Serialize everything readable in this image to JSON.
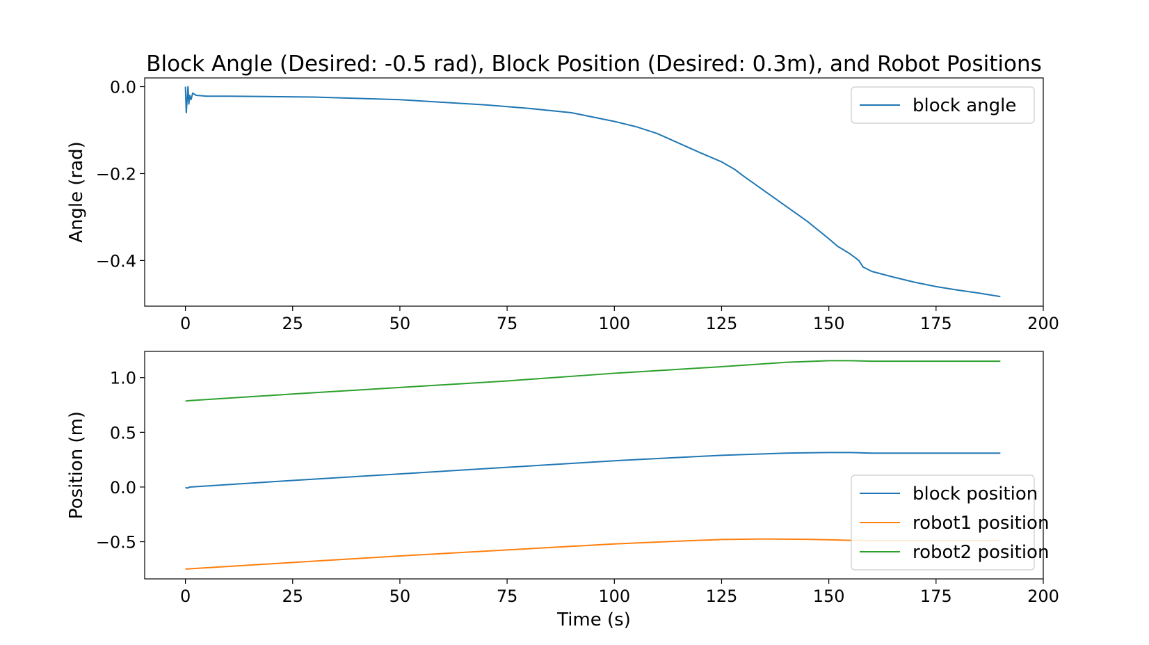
{
  "chart_data": [
    {
      "type": "line",
      "title": "Block Angle (Desired: -0.5 rad), Block Position (Desired: 0.3m), and Robot Positions",
      "xlabel": "",
      "ylabel": "Angle (rad)",
      "xlim": [
        -9.5,
        200
      ],
      "ylim": [
        -0.505,
        0.02
      ],
      "xticks": [
        0,
        25,
        50,
        75,
        100,
        125,
        150,
        175,
        200
      ],
      "xtick_labels": [
        "0",
        "25",
        "50",
        "75",
        "100",
        "125",
        "150",
        "175",
        "200"
      ],
      "yticks": [
        0.0,
        -0.2,
        -0.4
      ],
      "ytick_labels": [
        "0.0",
        "−0.2",
        "−0.4"
      ],
      "legend_position": "upper right",
      "grid": false,
      "series": [
        {
          "name": "block angle",
          "color": "#1f77b4",
          "x": [
            0,
            0.2,
            0.4,
            0.6,
            0.8,
            1.0,
            1.3,
            1.7,
            2.5,
            5,
            10,
            20,
            30,
            40,
            50,
            60,
            70,
            80,
            90,
            100,
            105,
            110,
            115,
            120,
            125,
            128,
            130,
            135,
            140,
            145,
            150,
            152,
            155,
            157,
            158,
            160,
            165,
            170,
            175,
            180,
            185,
            190
          ],
          "y": [
            0.0,
            -0.06,
            -0.03,
            0.0,
            -0.04,
            -0.02,
            -0.03,
            -0.015,
            -0.02,
            -0.022,
            -0.022,
            -0.023,
            -0.024,
            -0.027,
            -0.03,
            -0.036,
            -0.042,
            -0.05,
            -0.06,
            -0.08,
            -0.092,
            -0.108,
            -0.13,
            -0.152,
            -0.173,
            -0.19,
            -0.205,
            -0.24,
            -0.275,
            -0.31,
            -0.35,
            -0.367,
            -0.385,
            -0.4,
            -0.415,
            -0.425,
            -0.438,
            -0.45,
            -0.46,
            -0.468,
            -0.475,
            -0.483
          ]
        }
      ]
    },
    {
      "type": "line",
      "title": "",
      "xlabel": "Time (s)",
      "ylabel": "Position (m)",
      "xlim": [
        -9.5,
        200
      ],
      "ylim": [
        -0.84,
        1.24
      ],
      "xticks": [
        0,
        25,
        50,
        75,
        100,
        125,
        150,
        175,
        200
      ],
      "xtick_labels": [
        "0",
        "25",
        "50",
        "75",
        "100",
        "125",
        "150",
        "175",
        "200"
      ],
      "yticks": [
        1.0,
        0.5,
        0.0,
        -0.5
      ],
      "ytick_labels": [
        "1.0",
        "0.5",
        "0.0",
        "−0.5"
      ],
      "legend_position": "lower right",
      "grid": false,
      "series": [
        {
          "name": "block position",
          "color": "#1f77b4",
          "x": [
            0,
            0.5,
            1,
            25,
            50,
            75,
            100,
            125,
            140,
            150,
            155,
            160,
            170,
            180,
            190
          ],
          "y": [
            -0.005,
            -0.01,
            0.0,
            0.06,
            0.12,
            0.18,
            0.24,
            0.29,
            0.31,
            0.315,
            0.315,
            0.31,
            0.31,
            0.31,
            0.31
          ]
        },
        {
          "name": "robot1 position",
          "color": "#ff7f0e",
          "x": [
            0,
            25,
            50,
            75,
            100,
            115,
            125,
            135,
            145,
            150,
            155,
            160,
            170,
            180,
            190
          ],
          "y": [
            -0.75,
            -0.69,
            -0.63,
            -0.575,
            -0.52,
            -0.495,
            -0.48,
            -0.475,
            -0.478,
            -0.482,
            -0.488,
            -0.49,
            -0.49,
            -0.49,
            -0.49
          ]
        },
        {
          "name": "robot2 position",
          "color": "#2ca02c",
          "x": [
            0,
            1,
            25,
            50,
            75,
            100,
            125,
            140,
            150,
            155,
            160,
            170,
            180,
            190
          ],
          "y": [
            0.785,
            0.79,
            0.85,
            0.91,
            0.97,
            1.04,
            1.1,
            1.14,
            1.155,
            1.155,
            1.15,
            1.15,
            1.15,
            1.15
          ]
        }
      ]
    }
  ]
}
